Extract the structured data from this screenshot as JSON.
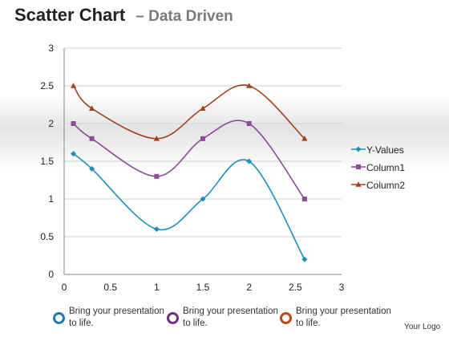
{
  "header": {
    "title": "Scatter Chart",
    "dash": "–",
    "subtitle": "Data Driven"
  },
  "chart_data": {
    "type": "scatter",
    "title": "",
    "xlabel": "",
    "ylabel": "",
    "xlim": [
      0,
      3
    ],
    "ylim": [
      0,
      3
    ],
    "x_ticks": [
      "0",
      "0.5",
      "1",
      "1.5",
      "2",
      "2.5",
      "3"
    ],
    "y_ticks": [
      "0",
      "0.5",
      "1",
      "1.5",
      "2",
      "2.5",
      "3"
    ],
    "grid": "horizontal",
    "smooth": true,
    "legend_position": "right",
    "series": [
      {
        "name": "Y-Values",
        "color": "#1f8fbf",
        "marker": "diamond",
        "x": [
          0.1,
          0.3,
          1,
          1.5,
          2,
          2.6
        ],
        "y": [
          1.6,
          1.4,
          0.6,
          1.0,
          1.5,
          0.2
        ]
      },
      {
        "name": "Column1",
        "color": "#8e4a9a",
        "marker": "square",
        "x": [
          0.1,
          0.3,
          1,
          1.5,
          2,
          2.6
        ],
        "y": [
          2.0,
          1.8,
          1.3,
          1.8,
          2.0,
          1.0
        ]
      },
      {
        "name": "Column2",
        "color": "#a34218",
        "marker": "triangle",
        "x": [
          0.1,
          0.3,
          1,
          1.5,
          2,
          2.6
        ],
        "y": [
          2.5,
          2.2,
          1.8,
          2.2,
          2.5,
          1.8
        ]
      }
    ]
  },
  "footer": {
    "items": [
      {
        "text": "Bring your presentation to life.",
        "color": "#1b7bb8"
      },
      {
        "text": "Bring your presentation to life.",
        "color": "#6f2f7f"
      },
      {
        "text": "Bring your presentation to life.",
        "color": "#c2461a"
      }
    ],
    "logo": "Your Logo"
  }
}
